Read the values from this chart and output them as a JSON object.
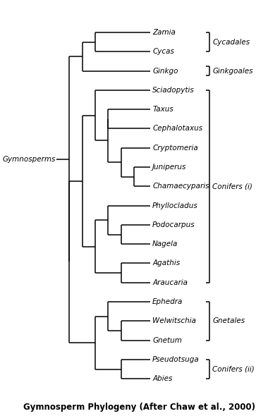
{
  "title": "Gymnosperm Phylogeny (After Chaw et al., 2000)",
  "taxa": [
    "Zamia",
    "Cycas",
    "Ginkgo",
    "Sciadopytis",
    "Taxus",
    "Cephalotaxus",
    "Cryptomeria",
    "Juniperus",
    "Chamaecyparis",
    "Phyllocladus",
    "Podocarpus",
    "Nagela",
    "Agathis",
    "Araucaria",
    "Ephedra",
    "Welwitschia",
    "Gnetum",
    "Pseudotsuga",
    "Abies"
  ],
  "root_label": "Gymnosperms",
  "bg_color": "#ffffff",
  "line_color": "#000000",
  "text_color": "#000000",
  "taxa_font_size": 7.5,
  "label_font_size": 7.5,
  "title_font_size": 8.5,
  "lw": 1.1
}
